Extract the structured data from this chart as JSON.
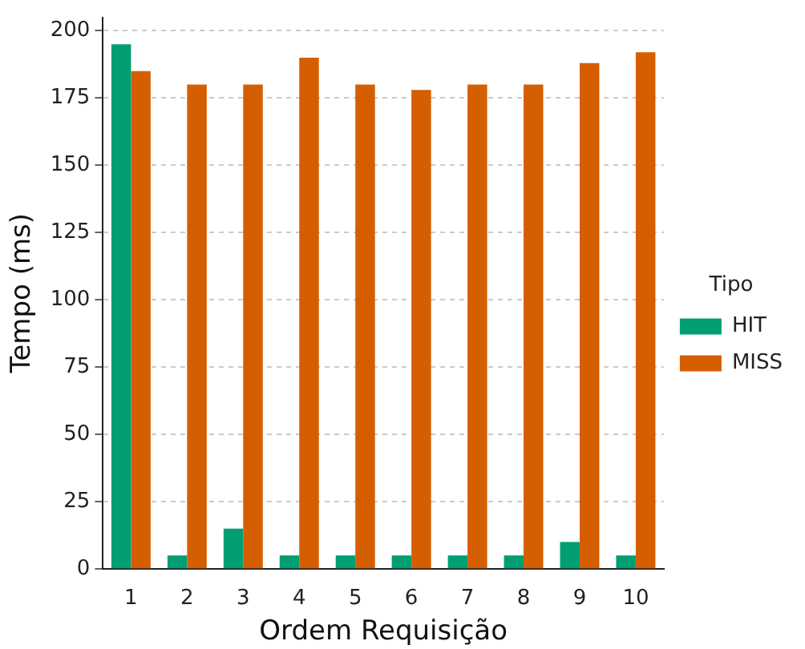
{
  "chart_data": {
    "type": "bar",
    "xlabel": "Ordem Requisição",
    "ylabel": "Tempo (ms)",
    "legend_title": "Tipo",
    "categories": [
      "1",
      "2",
      "3",
      "4",
      "5",
      "6",
      "7",
      "8",
      "9",
      "10"
    ],
    "series": [
      {
        "name": "HIT",
        "color": "#029e73",
        "values": [
          195,
          5,
          15,
          5,
          5,
          5,
          5,
          5,
          10,
          5
        ]
      },
      {
        "name": "MISS",
        "color": "#d55e00",
        "values": [
          185,
          180,
          180,
          190,
          180,
          178,
          180,
          180,
          188,
          192
        ]
      }
    ],
    "ylim": [
      0,
      205
    ],
    "yticks": [
      0,
      25,
      50,
      75,
      100,
      125,
      150,
      175,
      200
    ],
    "grid": "y",
    "legend": "right"
  }
}
